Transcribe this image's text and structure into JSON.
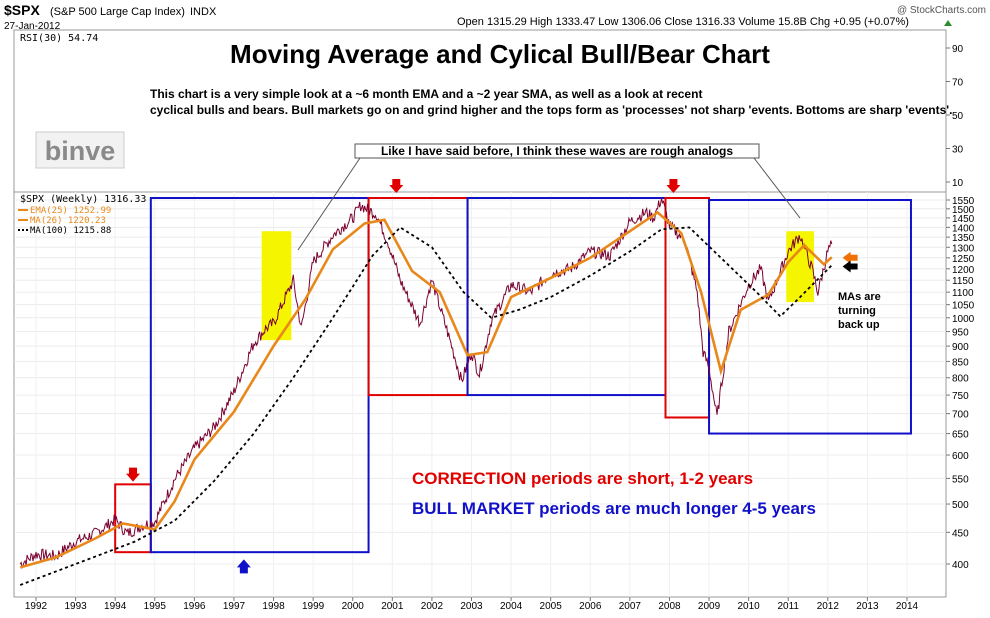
{
  "header": {
    "symbol": "$SPX",
    "name": "(S&P 500 Large Cap Index)",
    "exchange": "INDX",
    "date": "27-Jan-2012",
    "quote": "Open 1315.29  High 1333.47  Low 1306.06  Close 1316.33  Volume 15.8B  Chg +0.95 (+0.07%)",
    "watermark": "@ StockCharts.com",
    "quote_arrow_color": "#2e8b2e"
  },
  "rsi_panel": {
    "label": "RSI(30) 54.74",
    "ticks": [
      90,
      70,
      50,
      30,
      10
    ]
  },
  "price_panel": {
    "label": "$SPX (Weekly) 1316.33",
    "legend": [
      {
        "text": "EMA(25) 1252.99",
        "color": "#e8881a",
        "style": "solid"
      },
      {
        "text": "MA(26) 1220.23",
        "color": "#e8881a",
        "style": "solid"
      },
      {
        "text": "MA(100) 1215.88",
        "color": "#000000",
        "style": "dotted"
      }
    ]
  },
  "annotations": {
    "title": "Moving Average and Cylical Bull/Bear Chart",
    "description": "This chart is a very simple look at a ~6 month EMA and a ~2 year SMA, as well as a look at recent cyclical bulls and bears. Bull markets go on and grind higher and the tops form as 'processes' not sharp 'events. Bottoms are sharp 'events'.",
    "logo": "binve",
    "callout": "Like I have said before, I think these waves are rough analogs",
    "ma_note": "MAs are turning back up",
    "correction_prefix": "CORRECTION",
    "correction_rest": " periods are short, 1-2 years",
    "bull_prefix": "BULL MARKET",
    "bull_rest": " periods are much longer 4-5 years",
    "correction_color": "#e00000",
    "bull_color": "#1010c8",
    "highlight_color": "#f5f500"
  },
  "chart_data": {
    "type": "line",
    "title": "$SPX (Weekly) 1316.33",
    "x_axis": {
      "ticks": [
        "1992",
        "1993",
        "1994",
        "1995",
        "1996",
        "1997",
        "1998",
        "1999",
        "2000",
        "2001",
        "2002",
        "2003",
        "2004",
        "2005",
        "2006",
        "2007",
        "2008",
        "2009",
        "2010",
        "2011",
        "2012",
        "2013",
        "2014"
      ],
      "range": [
        1991.6,
        2014.5
      ]
    },
    "y_axis": {
      "scale": "log",
      "ticks": [
        400,
        450,
        500,
        550,
        600,
        650,
        700,
        750,
        800,
        850,
        900,
        950,
        1000,
        1050,
        1100,
        1150,
        1200,
        1250,
        1300,
        1350,
        1400,
        1450,
        1500,
        1550
      ],
      "range": [
        370,
        1580
      ]
    },
    "series": [
      {
        "name": "$SPX (Weekly)",
        "color": "#000000",
        "points": [
          [
            1991.6,
            400
          ],
          [
            1992.0,
            415
          ],
          [
            1992.5,
            412
          ],
          [
            1993.0,
            435
          ],
          [
            1993.5,
            448
          ],
          [
            1994.0,
            472
          ],
          [
            1994.3,
            448
          ],
          [
            1994.7,
            462
          ],
          [
            1995.0,
            468
          ],
          [
            1995.5,
            548
          ],
          [
            1996.0,
            615
          ],
          [
            1996.5,
            665
          ],
          [
            1997.0,
            760
          ],
          [
            1997.5,
            910
          ],
          [
            1997.8,
            960
          ],
          [
            1998.0,
            980
          ],
          [
            1998.5,
            1150
          ],
          [
            1998.7,
            960
          ],
          [
            1999.0,
            1230
          ],
          [
            1999.5,
            1360
          ],
          [
            2000.0,
            1450
          ],
          [
            2000.2,
            1520
          ],
          [
            2000.6,
            1470
          ],
          [
            2000.9,
            1320
          ],
          [
            2001.2,
            1150
          ],
          [
            2001.7,
            980
          ],
          [
            2002.0,
            1150
          ],
          [
            2002.5,
            900
          ],
          [
            2002.75,
            790
          ],
          [
            2003.0,
            880
          ],
          [
            2003.2,
            810
          ],
          [
            2003.5,
            990
          ],
          [
            2004.0,
            1130
          ],
          [
            2004.5,
            1100
          ],
          [
            2005.0,
            1180
          ],
          [
            2005.5,
            1200
          ],
          [
            2006.0,
            1280
          ],
          [
            2006.5,
            1260
          ],
          [
            2007.0,
            1430
          ],
          [
            2007.4,
            1480
          ],
          [
            2007.6,
            1450
          ],
          [
            2007.8,
            1560
          ],
          [
            2008.0,
            1410
          ],
          [
            2008.4,
            1330
          ],
          [
            2008.7,
            1100
          ],
          [
            2008.85,
            880
          ],
          [
            2009.0,
            830
          ],
          [
            2009.2,
            690
          ],
          [
            2009.5,
            950
          ],
          [
            2010.0,
            1130
          ],
          [
            2010.3,
            1200
          ],
          [
            2010.5,
            1060
          ],
          [
            2011.0,
            1280
          ],
          [
            2011.3,
            1360
          ],
          [
            2011.6,
            1200
          ],
          [
            2011.75,
            1100
          ],
          [
            2012.0,
            1280
          ],
          [
            2012.1,
            1316
          ]
        ]
      },
      {
        "name": "EMA(25)",
        "color": "#e8881a",
        "points": [
          [
            1991.6,
            395
          ],
          [
            1992.5,
            410
          ],
          [
            1993.5,
            440
          ],
          [
            1994.2,
            465
          ],
          [
            1995.0,
            455
          ],
          [
            1995.5,
            505
          ],
          [
            1996.0,
            590
          ],
          [
            1997.0,
            705
          ],
          [
            1998.0,
            900
          ],
          [
            1998.8,
            1070
          ],
          [
            1999.5,
            1290
          ],
          [
            2000.3,
            1420
          ],
          [
            2000.8,
            1440
          ],
          [
            2001.5,
            1190
          ],
          [
            2002.2,
            1100
          ],
          [
            2002.9,
            870
          ],
          [
            2003.4,
            880
          ],
          [
            2004.0,
            1080
          ],
          [
            2005.0,
            1160
          ],
          [
            2006.0,
            1250
          ],
          [
            2007.0,
            1380
          ],
          [
            2007.7,
            1480
          ],
          [
            2008.3,
            1370
          ],
          [
            2008.8,
            1100
          ],
          [
            2009.3,
            820
          ],
          [
            2009.8,
            1030
          ],
          [
            2010.5,
            1090
          ],
          [
            2011.0,
            1230
          ],
          [
            2011.4,
            1310
          ],
          [
            2011.9,
            1220
          ],
          [
            2012.1,
            1253
          ]
        ]
      },
      {
        "name": "MA(100)",
        "color": "#000000",
        "dash": "3,3",
        "points": [
          [
            1991.6,
            370
          ],
          [
            1993.0,
            400
          ],
          [
            1994.5,
            435
          ],
          [
            1995.5,
            470
          ],
          [
            1996.5,
            545
          ],
          [
            1997.5,
            650
          ],
          [
            1998.5,
            800
          ],
          [
            1999.5,
            1000
          ],
          [
            2000.5,
            1260
          ],
          [
            2001.2,
            1400
          ],
          [
            2002.0,
            1300
          ],
          [
            2002.8,
            1100
          ],
          [
            2003.5,
            1000
          ],
          [
            2004.2,
            1030
          ],
          [
            2005.0,
            1080
          ],
          [
            2006.0,
            1170
          ],
          [
            2007.0,
            1280
          ],
          [
            2007.8,
            1390
          ],
          [
            2008.5,
            1400
          ],
          [
            2009.3,
            1250
          ],
          [
            2010.2,
            1100
          ],
          [
            2010.8,
            1005
          ],
          [
            2011.3,
            1080
          ],
          [
            2012.1,
            1216
          ]
        ]
      }
    ],
    "rsi": {
      "name": "RSI(30)",
      "value": 54.74,
      "range": [
        0,
        100
      ]
    },
    "regions": [
      {
        "kind": "correction",
        "x": [
          1994.0,
          1994.9
        ],
        "y": [
          418,
          538
        ]
      },
      {
        "kind": "bull",
        "x": [
          1994.9,
          2000.4
        ],
        "y": [
          418,
          1580
        ]
      },
      {
        "kind": "correction",
        "x": [
          2000.4,
          2002.9
        ],
        "y": [
          750,
          1580
        ]
      },
      {
        "kind": "bull",
        "x": [
          2002.9,
          2007.9
        ],
        "y": [
          750,
          1580
        ]
      },
      {
        "kind": "correction",
        "x": [
          2007.9,
          2009.0
        ],
        "y": [
          690,
          1580
        ]
      },
      {
        "kind": "bull",
        "x": [
          2009.0,
          2014.1
        ],
        "y": [
          650,
          1550
        ]
      }
    ],
    "highlights": [
      {
        "x": [
          1997.7,
          1998.45
        ],
        "y": [
          920,
          1380
        ]
      },
      {
        "x": [
          2010.95,
          2011.65
        ],
        "y": [
          1060,
          1380
        ]
      }
    ],
    "markers": [
      {
        "kind": "down-arrow",
        "color": "#e00000",
        "x": 1994.45,
        "y": 560
      },
      {
        "kind": "up-arrow",
        "color": "#1010c8",
        "x": 1997.25,
        "y": 395
      },
      {
        "kind": "down-arrow",
        "color": "#e00000",
        "x": 2001.1,
        "y": 1640
      },
      {
        "kind": "down-arrow",
        "color": "#e00000",
        "x": 2008.1,
        "y": 1640
      },
      {
        "kind": "left-arrow",
        "color": "#f07000",
        "x": 2012.55,
        "y": 1250
      },
      {
        "kind": "left-arrow",
        "color": "#000000",
        "x": 2012.55,
        "y": 1210
      }
    ]
  }
}
